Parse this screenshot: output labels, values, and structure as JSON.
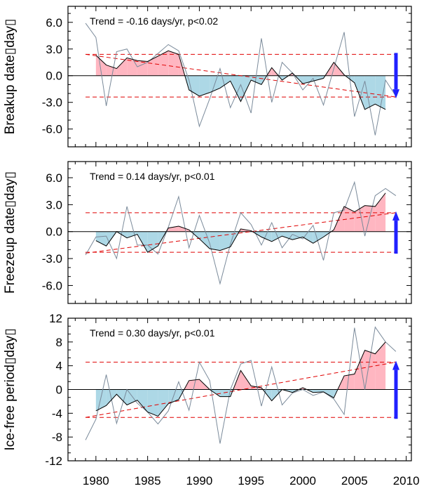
{
  "x_ticks": [
    "1980",
    "1985",
    "1990",
    "1995",
    "2000",
    "2005",
    "2010"
  ],
  "chart_data": [
    {
      "type": "line",
      "ylabel": "Breakup date▯day▯",
      "annotation": "Trend = -0.16 days/yr, p<0.02",
      "y_ticks": [
        "6.0",
        "3.0",
        "0.0",
        "-3.0",
        "-6.0"
      ],
      "xlim": [
        1977.3,
        2010.5
      ],
      "ylim": [
        -8.0,
        7.8
      ],
      "std_lines": [
        2.4,
        -2.4
      ],
      "trend_line": {
        "x": [
          1979,
          2009
        ],
        "y": [
          2.4,
          -2.4
        ]
      },
      "arrow_direction": "down",
      "series": [
        {
          "x": [
            1979,
            1980,
            1981,
            1982,
            1983,
            1984,
            1985,
            1986,
            1987,
            1988,
            1989,
            1990,
            1991,
            1992,
            1993,
            1994,
            1995,
            1996,
            1997,
            1998,
            1999,
            2000,
            2001,
            2002,
            2003,
            2004,
            2005,
            2006,
            2007,
            2008,
            2009
          ],
          "values": [
            5.9,
            4.3,
            -3.4,
            2.7,
            3.0,
            1.0,
            1.5,
            2.5,
            3.5,
            2.8,
            -0.5,
            -5.7,
            -2.6,
            0.8,
            -3.6,
            -1.0,
            -4.2,
            4.2,
            -3.0,
            1.5,
            0.3,
            -1.6,
            -0.3,
            -3.3,
            0.8,
            4.9,
            -4.6,
            -0.6,
            -6.7,
            -0.5,
            -2.3
          ]
        },
        {
          "x": [
            1980,
            1981,
            1982,
            1983,
            1984,
            1985,
            1986,
            1987,
            1988,
            1989,
            1990,
            1991,
            1992,
            1993,
            1994,
            1995,
            1996,
            1997,
            1998,
            1999,
            2000,
            2001,
            2002,
            2003,
            2004,
            2005,
            2006,
            2007,
            2008
          ],
          "values": [
            2.3,
            1.2,
            0.8,
            2.0,
            1.7,
            1.6,
            2.2,
            2.8,
            2.4,
            -1.6,
            -2.3,
            -1.9,
            -1.4,
            -0.6,
            -2.9,
            -0.5,
            -1.0,
            0.9,
            -0.5,
            0.3,
            -0.9,
            -0.6,
            -0.3,
            1.5,
            0.1,
            -0.8,
            -3.8,
            -3.2,
            -3.8
          ]
        }
      ]
    },
    {
      "type": "line",
      "ylabel": "Freezeup date▯day▯",
      "annotation": "Trend = 0.14 days/yr, p<0.01",
      "y_ticks": [
        "6.0",
        "3.0",
        "0.0",
        "-3.0",
        "-6.0"
      ],
      "xlim": [
        1977.3,
        2010.5
      ],
      "ylim": [
        -8.0,
        7.8
      ],
      "std_lines": [
        2.1,
        -2.3
      ],
      "trend_line": {
        "x": [
          1979,
          2009
        ],
        "y": [
          -2.4,
          2.1
        ]
      },
      "arrow_direction": "up",
      "series": [
        {
          "x": [
            1979,
            1980,
            1981,
            1982,
            1983,
            1984,
            1985,
            1986,
            1987,
            1988,
            1989,
            1990,
            1991,
            1992,
            1993,
            1994,
            1995,
            1996,
            1997,
            1998,
            1999,
            2000,
            2001,
            2002,
            2003,
            2004,
            2005,
            2006,
            2007,
            2008,
            2009
          ],
          "values": [
            -2.6,
            -0.6,
            -0.5,
            -3.0,
            2.8,
            -1.5,
            -1.5,
            -2.5,
            0.5,
            3.9,
            -1.8,
            1.8,
            -1.3,
            -5.8,
            -1.4,
            2.1,
            0.8,
            -1.5,
            1.0,
            -1.8,
            -0.3,
            -0.8,
            0.7,
            -3.2,
            2.1,
            2.4,
            5.5,
            -0.5,
            4.0,
            4.8,
            4.0
          ]
        },
        {
          "x": [
            1980,
            1981,
            1982,
            1983,
            1984,
            1985,
            1986,
            1987,
            1988,
            1989,
            1990,
            1991,
            1992,
            1993,
            1994,
            1995,
            1996,
            1997,
            1998,
            1999,
            2000,
            2001,
            2002,
            2003,
            2004,
            2005,
            2006,
            2007,
            2008
          ],
          "values": [
            -1.0,
            -1.6,
            0.0,
            -0.7,
            -0.3,
            -2.3,
            -1.6,
            0.4,
            0.6,
            0.2,
            -0.8,
            -1.9,
            -2.1,
            -1.7,
            0.3,
            0.1,
            -0.6,
            -1.1,
            -0.5,
            -0.9,
            -0.6,
            -1.3,
            -0.6,
            0.2,
            2.8,
            2.2,
            2.9,
            2.8,
            4.3
          ]
        }
      ]
    },
    {
      "type": "line",
      "ylabel": "Ice-free period▯day▯",
      "annotation": "Trend = 0.30 days/yr, p<0.01",
      "y_ticks": [
        "12",
        "8",
        "4",
        "0",
        "-4",
        "-8",
        "-12"
      ],
      "xlim": [
        1977.3,
        2010.5
      ],
      "ylim": [
        -12.0,
        12.0
      ],
      "std_lines": [
        4.6,
        -4.7
      ],
      "trend_line": {
        "x": [
          1979,
          2009
        ],
        "y": [
          -4.7,
          4.6
        ]
      },
      "arrow_direction": "up",
      "series": [
        {
          "x": [
            1979,
            1980,
            1981,
            1982,
            1983,
            1984,
            1985,
            1986,
            1987,
            1988,
            1989,
            1990,
            1991,
            1992,
            1993,
            1994,
            1995,
            1996,
            1997,
            1998,
            1999,
            2000,
            2001,
            2002,
            2003,
            2004,
            2005,
            2006,
            2007,
            2008,
            2009
          ],
          "values": [
            -8.5,
            -5.0,
            2.5,
            -5.7,
            0.0,
            -2.3,
            -3.8,
            -5.8,
            -3.6,
            1.3,
            -3.5,
            4.6,
            1.5,
            -9.1,
            0.0,
            4.3,
            4.9,
            -2.8,
            3.8,
            -2.6,
            -0.6,
            0.0,
            -1.0,
            -0.4,
            -1.6,
            -4.2,
            10.4,
            0.0,
            10.5,
            8.0,
            6.4
          ]
        },
        {
          "x": [
            1980,
            1981,
            1982,
            1983,
            1984,
            1985,
            1986,
            1987,
            1988,
            1989,
            1990,
            1991,
            1992,
            1993,
            1994,
            1995,
            1996,
            1997,
            1998,
            1999,
            2000,
            2001,
            2002,
            2003,
            2004,
            2005,
            2006,
            2007,
            2008
          ],
          "values": [
            -3.6,
            -2.7,
            -0.8,
            -2.6,
            -1.8,
            -3.8,
            -4.5,
            -2.4,
            -1.7,
            1.5,
            1.7,
            0.0,
            -1.2,
            -1.2,
            3.2,
            0.6,
            0.3,
            -1.9,
            0.0,
            -0.5,
            0.3,
            -0.5,
            -0.4,
            -1.4,
            2.3,
            2.6,
            6.6,
            6.0,
            8.0
          ]
        }
      ]
    }
  ],
  "colors": {
    "positive_fill": "#ffb6c1",
    "negative_fill": "#add8e6",
    "raw_line": "#7a8a9a",
    "smooth_line": "#000000",
    "std_line": "#e00000",
    "trend_line": "#e00000",
    "arrow": "#2020ff"
  }
}
